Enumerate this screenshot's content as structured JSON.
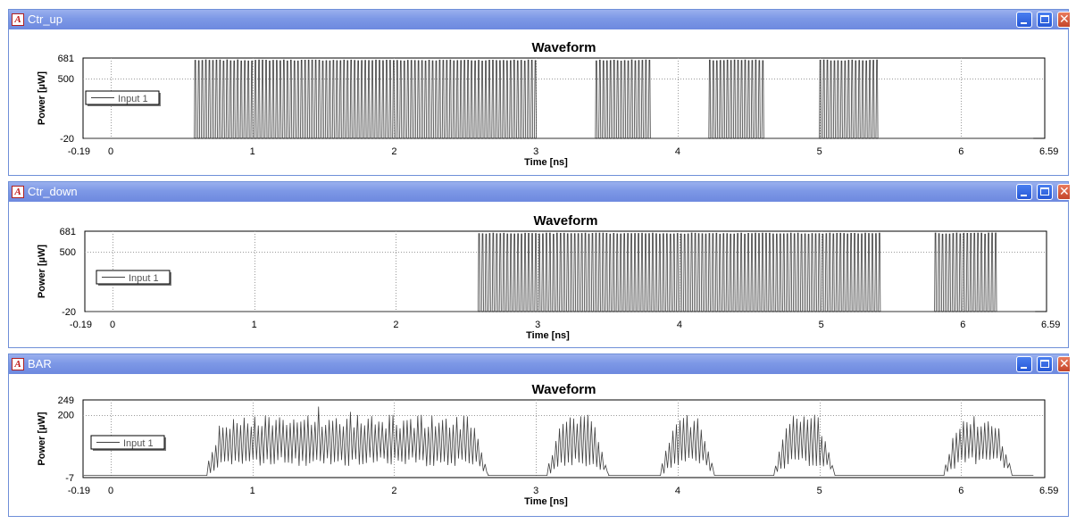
{
  "windows": [
    {
      "title": "Ctr_up",
      "chart_data": {
        "type": "line",
        "title": "Waveform",
        "xlabel": "Time [ns]",
        "ylabel": "Power [µW]",
        "xlim": [
          -0.19,
          6.59
        ],
        "ylim": [
          -20,
          681
        ],
        "x_ticks": [
          "-0.19",
          "0",
          "1",
          "2",
          "3",
          "4",
          "5",
          "6",
          "6.59"
        ],
        "y_ticks": [
          "681",
          "500",
          "-20"
        ],
        "grid": true,
        "legend": {
          "position": "left",
          "entries": [
            "Input 1"
          ]
        },
        "series": [
          {
            "name": "Input 1",
            "style": "pulse-train",
            "baseline": -20,
            "peak": 660,
            "pulse_period_ns": 0.025,
            "bursts": [
              [
                0.59,
                3.01
              ],
              [
                3.42,
                3.8
              ],
              [
                4.22,
                4.61
              ],
              [
                5.0,
                5.42
              ]
            ]
          }
        ]
      }
    },
    {
      "title": "Ctr_down",
      "chart_data": {
        "type": "line",
        "title": "Waveform",
        "xlabel": "Time [ns]",
        "ylabel": "Power [µW]",
        "xlim": [
          -0.19,
          6.59
        ],
        "ylim": [
          -20,
          681
        ],
        "x_ticks": [
          "-0.19",
          "0",
          "1",
          "2",
          "3",
          "4",
          "5",
          "6",
          "6.59"
        ],
        "y_ticks": [
          "681",
          "500",
          "-20"
        ],
        "grid": true,
        "legend": {
          "position": "left",
          "entries": [
            "Input 1"
          ]
        },
        "series": [
          {
            "name": "Input 1",
            "style": "pulse-train",
            "baseline": -20,
            "peak": 660,
            "pulse_period_ns": 0.025,
            "bursts": [
              [
                2.58,
                5.42
              ],
              [
                5.8,
                6.23
              ]
            ]
          }
        ]
      }
    },
    {
      "title": "BAR",
      "chart_data": {
        "type": "line",
        "title": "Waveform",
        "xlabel": "Time [ns]",
        "ylabel": "Power [µW]",
        "xlim": [
          -0.19,
          6.59
        ],
        "ylim": [
          -7,
          249
        ],
        "x_ticks": [
          "-0.19",
          "0",
          "1",
          "2",
          "3",
          "4",
          "5",
          "6",
          "6.59"
        ],
        "y_ticks": [
          "249",
          "200",
          "-7"
        ],
        "grid": true,
        "legend": {
          "position": "left",
          "entries": [
            "Input 1"
          ]
        },
        "series": [
          {
            "name": "Input 1",
            "style": "noisy-pulse-train",
            "baseline": 0,
            "peak_mean": 175,
            "trough_mean": 45,
            "peak_max": 230,
            "pulse_period_ns": 0.025,
            "bursts": [
              [
                0.66,
                2.66
              ],
              [
                3.06,
                3.51
              ],
              [
                3.86,
                4.26
              ],
              [
                4.66,
                5.11
              ],
              [
                5.86,
                6.36
              ]
            ]
          }
        ]
      }
    }
  ]
}
